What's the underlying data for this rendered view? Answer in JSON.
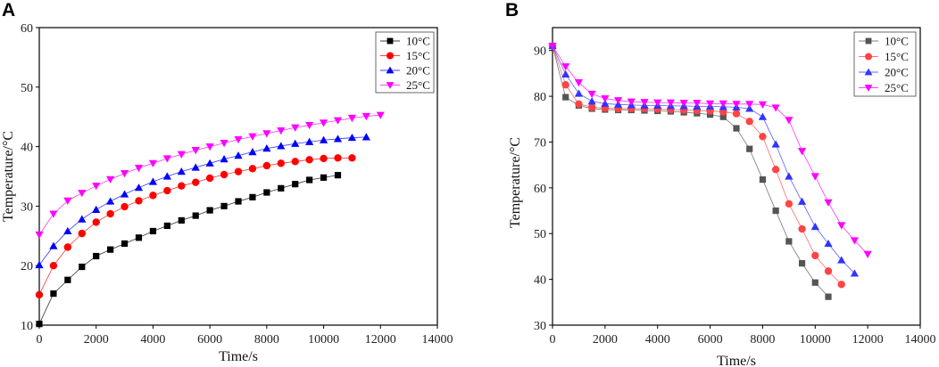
{
  "chart_data": [
    {
      "panel_label": "A",
      "type": "line",
      "title": "",
      "xlabel": "Time/s",
      "ylabel": "Temperature/°C",
      "xlim": [
        0,
        14000
      ],
      "ylim": [
        10,
        60
      ],
      "xticks": [
        0,
        2000,
        4000,
        6000,
        8000,
        10000,
        12000,
        14000
      ],
      "yticks": [
        10,
        20,
        30,
        40,
        50,
        60
      ],
      "legend_position": "top-right",
      "series": [
        {
          "name": "10°C",
          "color": "#000000",
          "marker": "square",
          "x": [
            0,
            500,
            1000,
            1500,
            2000,
            2500,
            3000,
            3500,
            4000,
            4500,
            5000,
            5500,
            6000,
            6500,
            7000,
            7500,
            8000,
            8500,
            9000,
            9500,
            10000,
            10500
          ],
          "y": [
            10.2,
            15.3,
            17.6,
            19.8,
            21.6,
            22.7,
            23.7,
            24.7,
            25.8,
            26.7,
            27.6,
            28.4,
            29.3,
            30.0,
            30.8,
            31.5,
            32.3,
            33.0,
            33.7,
            34.4,
            34.8,
            35.2
          ]
        },
        {
          "name": "15°C",
          "color": "#ff0000",
          "marker": "circle",
          "x": [
            0,
            500,
            1000,
            1500,
            2000,
            2500,
            3000,
            3500,
            4000,
            4500,
            5000,
            5500,
            6000,
            6500,
            7000,
            7500,
            8000,
            8500,
            9000,
            9500,
            10000,
            10500,
            11000
          ],
          "y": [
            15.1,
            20.0,
            23.1,
            25.4,
            27.3,
            28.7,
            29.9,
            30.9,
            31.8,
            32.6,
            33.4,
            34.0,
            34.7,
            35.3,
            35.8,
            36.3,
            36.8,
            37.2,
            37.5,
            37.8,
            38.0,
            38.1,
            38.1
          ]
        },
        {
          "name": "20°C",
          "color": "#0000ff",
          "marker": "triangle-up",
          "x": [
            0,
            500,
            1000,
            1500,
            2000,
            2500,
            3000,
            3500,
            4000,
            4500,
            5000,
            5500,
            6000,
            6500,
            7000,
            7500,
            8000,
            8500,
            9000,
            9500,
            10000,
            10500,
            11000,
            11500
          ],
          "y": [
            20.1,
            23.3,
            25.8,
            27.8,
            29.4,
            30.8,
            32.0,
            33.1,
            34.1,
            35.0,
            35.8,
            36.5,
            37.2,
            37.9,
            38.5,
            39.1,
            39.7,
            40.1,
            40.5,
            40.8,
            41.1,
            41.3,
            41.5,
            41.6
          ]
        },
        {
          "name": "25°C",
          "color": "#ff00ff",
          "marker": "triangle-down",
          "x": [
            0,
            500,
            1000,
            1500,
            2000,
            2500,
            3000,
            3500,
            4000,
            4500,
            5000,
            5500,
            6000,
            6500,
            7000,
            7500,
            8000,
            8500,
            9000,
            9500,
            10000,
            10500,
            11000,
            11500,
            12000
          ],
          "y": [
            25.2,
            28.7,
            30.9,
            32.2,
            33.4,
            34.5,
            35.5,
            36.4,
            37.2,
            38.0,
            38.7,
            39.4,
            40.0,
            40.6,
            41.2,
            41.7,
            42.2,
            42.7,
            43.2,
            43.6,
            44.0,
            44.4,
            44.8,
            45.1,
            45.3
          ]
        }
      ]
    },
    {
      "panel_label": "B",
      "type": "line",
      "title": "",
      "xlabel": "Time/s",
      "ylabel": "Temperature/°C",
      "xlim": [
        0,
        14000
      ],
      "ylim": [
        30,
        95
      ],
      "xticks": [
        0,
        2000,
        4000,
        6000,
        8000,
        10000,
        12000,
        14000
      ],
      "yticks": [
        30,
        40,
        50,
        60,
        70,
        80,
        90
      ],
      "legend_position": "top-right",
      "series": [
        {
          "name": "10°C",
          "color": "#555555",
          "marker": "square",
          "x": [
            0,
            500,
            1000,
            1500,
            2000,
            2500,
            3000,
            3500,
            4000,
            4500,
            5000,
            5500,
            6000,
            6500,
            7000,
            7500,
            8000,
            8500,
            9000,
            9500,
            10000,
            10500
          ],
          "y": [
            91.0,
            79.8,
            78.0,
            77.3,
            77.1,
            77.0,
            77.0,
            76.9,
            76.8,
            76.7,
            76.5,
            76.3,
            76.0,
            75.5,
            73.0,
            68.5,
            61.8,
            55.0,
            48.3,
            43.5,
            39.3,
            36.2
          ]
        },
        {
          "name": "15°C",
          "color": "#ff4444",
          "marker": "circle",
          "x": [
            0,
            500,
            1000,
            1500,
            2000,
            2500,
            3000,
            3500,
            4000,
            4500,
            5000,
            5500,
            6000,
            6500,
            7000,
            7500,
            8000,
            8500,
            9000,
            9500,
            10000,
            10500,
            11000
          ],
          "y": [
            91.0,
            82.5,
            78.3,
            77.6,
            77.4,
            77.3,
            77.3,
            77.3,
            77.2,
            77.1,
            77.0,
            76.9,
            76.8,
            76.6,
            76.2,
            74.5,
            71.2,
            64.0,
            56.5,
            51.0,
            45.2,
            41.8,
            38.9
          ]
        },
        {
          "name": "20°C",
          "color": "#3333ff",
          "marker": "triangle-up",
          "x": [
            0,
            500,
            1000,
            1500,
            2000,
            2500,
            3000,
            3500,
            4000,
            4500,
            5000,
            5500,
            6000,
            6500,
            7000,
            7500,
            8000,
            8500,
            9000,
            9500,
            10000,
            10500,
            11000,
            11500
          ],
          "y": [
            91.0,
            84.8,
            80.6,
            78.9,
            78.4,
            78.2,
            78.1,
            78.0,
            78.0,
            77.9,
            77.9,
            77.8,
            77.8,
            77.7,
            77.6,
            77.3,
            75.5,
            69.5,
            62.5,
            57.0,
            51.5,
            47.8,
            44.2,
            41.3
          ]
        },
        {
          "name": "25°C",
          "color": "#ff00ff",
          "marker": "triangle-down",
          "x": [
            0,
            500,
            1000,
            1500,
            2000,
            2500,
            3000,
            3500,
            4000,
            4500,
            5000,
            5500,
            6000,
            6500,
            7000,
            7500,
            8000,
            8500,
            9000,
            9500,
            10000,
            10500,
            11000,
            11500,
            12000
          ],
          "y": [
            91.0,
            86.5,
            83.0,
            80.5,
            79.5,
            79.1,
            78.8,
            78.7,
            78.6,
            78.6,
            78.5,
            78.5,
            78.4,
            78.4,
            78.3,
            78.3,
            78.2,
            77.5,
            74.8,
            68.0,
            62.5,
            56.8,
            51.8,
            48.5,
            45.5
          ]
        }
      ]
    }
  ]
}
